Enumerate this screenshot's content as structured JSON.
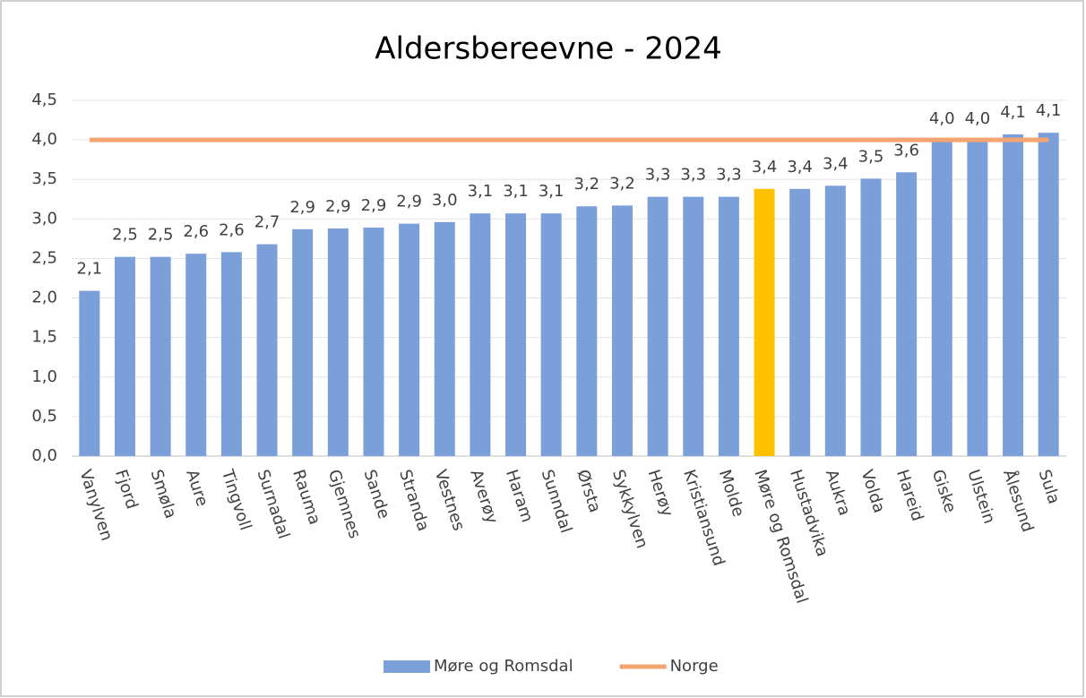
{
  "chart_data": {
    "type": "bar",
    "title": "Aldersbereevne - 2024",
    "categories": [
      "Vanylven",
      "Fjord",
      "Smøla",
      "Aure",
      "Tingvoll",
      "Surnadal",
      "Rauma",
      "Gjemnes",
      "Sande",
      "Stranda",
      "Vestnes",
      "Averøy",
      "Haram",
      "Sunndal",
      "Ørsta",
      "Sykkylven",
      "Herøy",
      "Kristiansund",
      "Molde",
      "Møre og Romsdal",
      "Hustadvika",
      "Aukra",
      "Volda",
      "Hareid",
      "Giske",
      "Ulstein",
      "Ålesund",
      "Sula"
    ],
    "series": [
      {
        "name": "Møre og Romsdal",
        "type": "bar",
        "color": "#7b9fd8",
        "colors": [
          "#7b9fd8",
          "#7b9fd8",
          "#7b9fd8",
          "#7b9fd8",
          "#7b9fd8",
          "#7b9fd8",
          "#7b9fd8",
          "#7b9fd8",
          "#7b9fd8",
          "#7b9fd8",
          "#7b9fd8",
          "#7b9fd8",
          "#7b9fd8",
          "#7b9fd8",
          "#7b9fd8",
          "#7b9fd8",
          "#7b9fd8",
          "#7b9fd8",
          "#7b9fd8",
          "#ffc000",
          "#7b9fd8",
          "#7b9fd8",
          "#7b9fd8",
          "#7b9fd8",
          "#7b9fd8",
          "#7b9fd8",
          "#7b9fd8",
          "#7b9fd8"
        ],
        "values": [
          2.09,
          2.52,
          2.52,
          2.56,
          2.58,
          2.68,
          2.87,
          2.88,
          2.89,
          2.94,
          2.96,
          3.07,
          3.07,
          3.07,
          3.16,
          3.17,
          3.28,
          3.28,
          3.28,
          3.38,
          3.38,
          3.42,
          3.51,
          3.59,
          3.99,
          3.99,
          4.07,
          4.09
        ],
        "value_labels": [
          "2,1",
          "2,5",
          "2,5",
          "2,6",
          "2,6",
          "2,7",
          "2,9",
          "2,9",
          "2,9",
          "2,9",
          "3,0",
          "3,1",
          "3,1",
          "3,1",
          "3,2",
          "3,2",
          "3,3",
          "3,3",
          "3,3",
          "3,4",
          "3,4",
          "3,4",
          "3,5",
          "3,6",
          "4,0",
          "4,0",
          "4,1",
          "4,1"
        ]
      },
      {
        "name": "Norge",
        "type": "line",
        "color": "#f4a470",
        "values": [
          4.0,
          4.0,
          4.0,
          4.0,
          4.0,
          4.0,
          4.0,
          4.0,
          4.0,
          4.0,
          4.0,
          4.0,
          4.0,
          4.0,
          4.0,
          4.0,
          4.0,
          4.0,
          4.0,
          4.0,
          4.0,
          4.0,
          4.0,
          4.0,
          4.0,
          4.0,
          4.0,
          4.0
        ]
      }
    ],
    "ylim": [
      0,
      4.5
    ],
    "yticks": [
      {
        "value": 0,
        "label": "0,0"
      },
      {
        "value": 0.5,
        "label": "0,5"
      },
      {
        "value": 1,
        "label": "1,0"
      },
      {
        "value": 1.5,
        "label": "1,5"
      },
      {
        "value": 2,
        "label": "2,0"
      },
      {
        "value": 2.5,
        "label": "2,5"
      },
      {
        "value": 3,
        "label": "3,0"
      },
      {
        "value": 3.5,
        "label": "3,5"
      },
      {
        "value": 4,
        "label": "4,0"
      },
      {
        "value": 4.5,
        "label": "4,5"
      }
    ],
    "grid": true,
    "legend": "bottom"
  }
}
